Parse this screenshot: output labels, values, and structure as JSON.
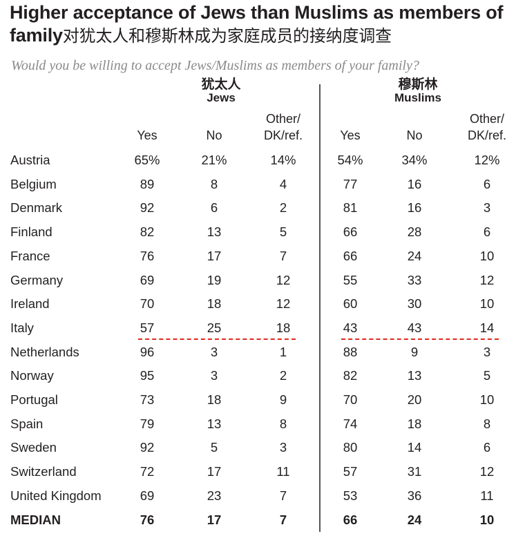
{
  "title_en": "Higher acceptance of Jews than Muslims as members of family",
  "title_cn": "对犹太人和穆斯林成为家庭成员的接纳度调查",
  "subtitle": "Would you be willing to accept Jews/Muslims as members of your family?",
  "groups": [
    {
      "cn": "犹太人",
      "en": "Jews"
    },
    {
      "cn": "穆斯林",
      "en": "Muslims"
    }
  ],
  "columns": [
    "Yes",
    "No",
    "Other/ DK/ref."
  ],
  "colors": {
    "text": "#231f20",
    "subtitle": "#8a8a8a",
    "highlight": "#e1261c"
  },
  "chart_data": {
    "type": "table",
    "title": "Higher acceptance of Jews than Muslims as members of family",
    "subtitle": "Would you be willing to accept Jews/Muslims as members of your family?",
    "rows": [
      {
        "country": "Austria",
        "jews": [
          "65%",
          "21%",
          "14%"
        ],
        "muslims": [
          "54%",
          "34%",
          "12%"
        ]
      },
      {
        "country": "Belgium",
        "jews": [
          "89",
          "8",
          "4"
        ],
        "muslims": [
          "77",
          "16",
          "6"
        ]
      },
      {
        "country": "Denmark",
        "jews": [
          "92",
          "6",
          "2"
        ],
        "muslims": [
          "81",
          "16",
          "3"
        ]
      },
      {
        "country": "Finland",
        "jews": [
          "82",
          "13",
          "5"
        ],
        "muslims": [
          "66",
          "28",
          "6"
        ]
      },
      {
        "country": "France",
        "jews": [
          "76",
          "17",
          "7"
        ],
        "muslims": [
          "66",
          "24",
          "10"
        ]
      },
      {
        "country": "Germany",
        "jews": [
          "69",
          "19",
          "12"
        ],
        "muslims": [
          "55",
          "33",
          "12"
        ]
      },
      {
        "country": "Ireland",
        "jews": [
          "70",
          "18",
          "12"
        ],
        "muslims": [
          "60",
          "30",
          "10"
        ]
      },
      {
        "country": "Italy",
        "jews": [
          "57",
          "25",
          "18"
        ],
        "muslims": [
          "43",
          "43",
          "14"
        ],
        "highlighted": true
      },
      {
        "country": "Netherlands",
        "jews": [
          "96",
          "3",
          "1"
        ],
        "muslims": [
          "88",
          "9",
          "3"
        ]
      },
      {
        "country": "Norway",
        "jews": [
          "95",
          "3",
          "2"
        ],
        "muslims": [
          "82",
          "13",
          "5"
        ]
      },
      {
        "country": "Portugal",
        "jews": [
          "73",
          "18",
          "9"
        ],
        "muslims": [
          "70",
          "20",
          "10"
        ]
      },
      {
        "country": "Spain",
        "jews": [
          "79",
          "13",
          "8"
        ],
        "muslims": [
          "74",
          "18",
          "8"
        ]
      },
      {
        "country": "Sweden",
        "jews": [
          "92",
          "5",
          "3"
        ],
        "muslims": [
          "80",
          "14",
          "6"
        ]
      },
      {
        "country": "Switzerland",
        "jews": [
          "72",
          "17",
          "11"
        ],
        "muslims": [
          "57",
          "31",
          "12"
        ]
      },
      {
        "country": "United Kingdom",
        "jews": [
          "69",
          "23",
          "7"
        ],
        "muslims": [
          "53",
          "36",
          "11"
        ]
      }
    ],
    "median": {
      "country": "MEDIAN",
      "jews": [
        "76",
        "17",
        "7"
      ],
      "muslims": [
        "66",
        "24",
        "10"
      ]
    }
  }
}
